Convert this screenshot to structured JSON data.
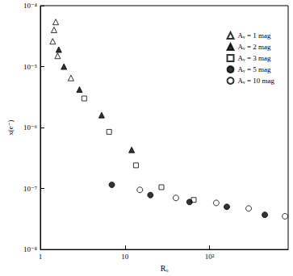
{
  "chart_data": {
    "type": "scatter",
    "x_label": "Rₒ",
    "y_label": "x(e⁻)",
    "log": true,
    "grid": false,
    "legend": "upper right",
    "xlim": [
      1,
      850
    ],
    "xticks": [
      1,
      10,
      {
        "value": 100,
        "label": "10²"
      }
    ],
    "ylim": [
      1e-08,
      0.0001
    ],
    "yticks": [
      {
        "value": 1e-08,
        "label": "10⁻⁸"
      },
      {
        "value": 1e-07,
        "label": "10⁻⁷"
      },
      {
        "value": 1e-06,
        "label": "10⁻⁶"
      },
      {
        "value": 1e-05,
        "label": "10⁻⁵"
      },
      {
        "value": 0.0001,
        "label": "10⁻⁴"
      }
    ],
    "series": [
      {
        "name": "Aᵥ = 1 mag",
        "color": "#000000",
        "marker": "triangle-open",
        "x": [
          1.52,
          1.45,
          1.4,
          1.6,
          2.3
        ],
        "values": [
          5.4e-05,
          4e-05,
          2.6e-05,
          1.5e-05,
          6.5e-06
        ]
      },
      {
        "name": "Aᵥ = 2 mag",
        "color": "#000000",
        "marker": "triangle",
        "x": [
          1.65,
          1.9,
          2.9,
          5.3,
          12
        ],
        "values": [
          1.9e-05,
          1e-05,
          4.2e-06,
          1.6e-06,
          4.3e-07
        ]
      },
      {
        "name": "Aᵥ = 3 mag",
        "color": "#000000",
        "marker": "square-open",
        "x": [
          3.3,
          6.5,
          13.5,
          27,
          65
        ],
        "values": [
          3e-06,
          8.5e-07,
          2.4e-07,
          1.05e-07,
          6.5e-08
        ]
      },
      {
        "name": "Aᵥ = 5 mag",
        "color": "#000000",
        "marker": "circle",
        "x": [
          7,
          20,
          58,
          160,
          450
        ],
        "values": [
          1.15e-07,
          7.8e-08,
          6e-08,
          5e-08,
          3.7e-08
        ]
      },
      {
        "name": "Aᵥ = 10 mag",
        "color": "#000000",
        "marker": "circle-open",
        "x": [
          15,
          40,
          120,
          290,
          780
        ],
        "values": [
          9.5e-08,
          7e-08,
          5.8e-08,
          4.7e-08,
          3.5e-08
        ]
      }
    ]
  }
}
